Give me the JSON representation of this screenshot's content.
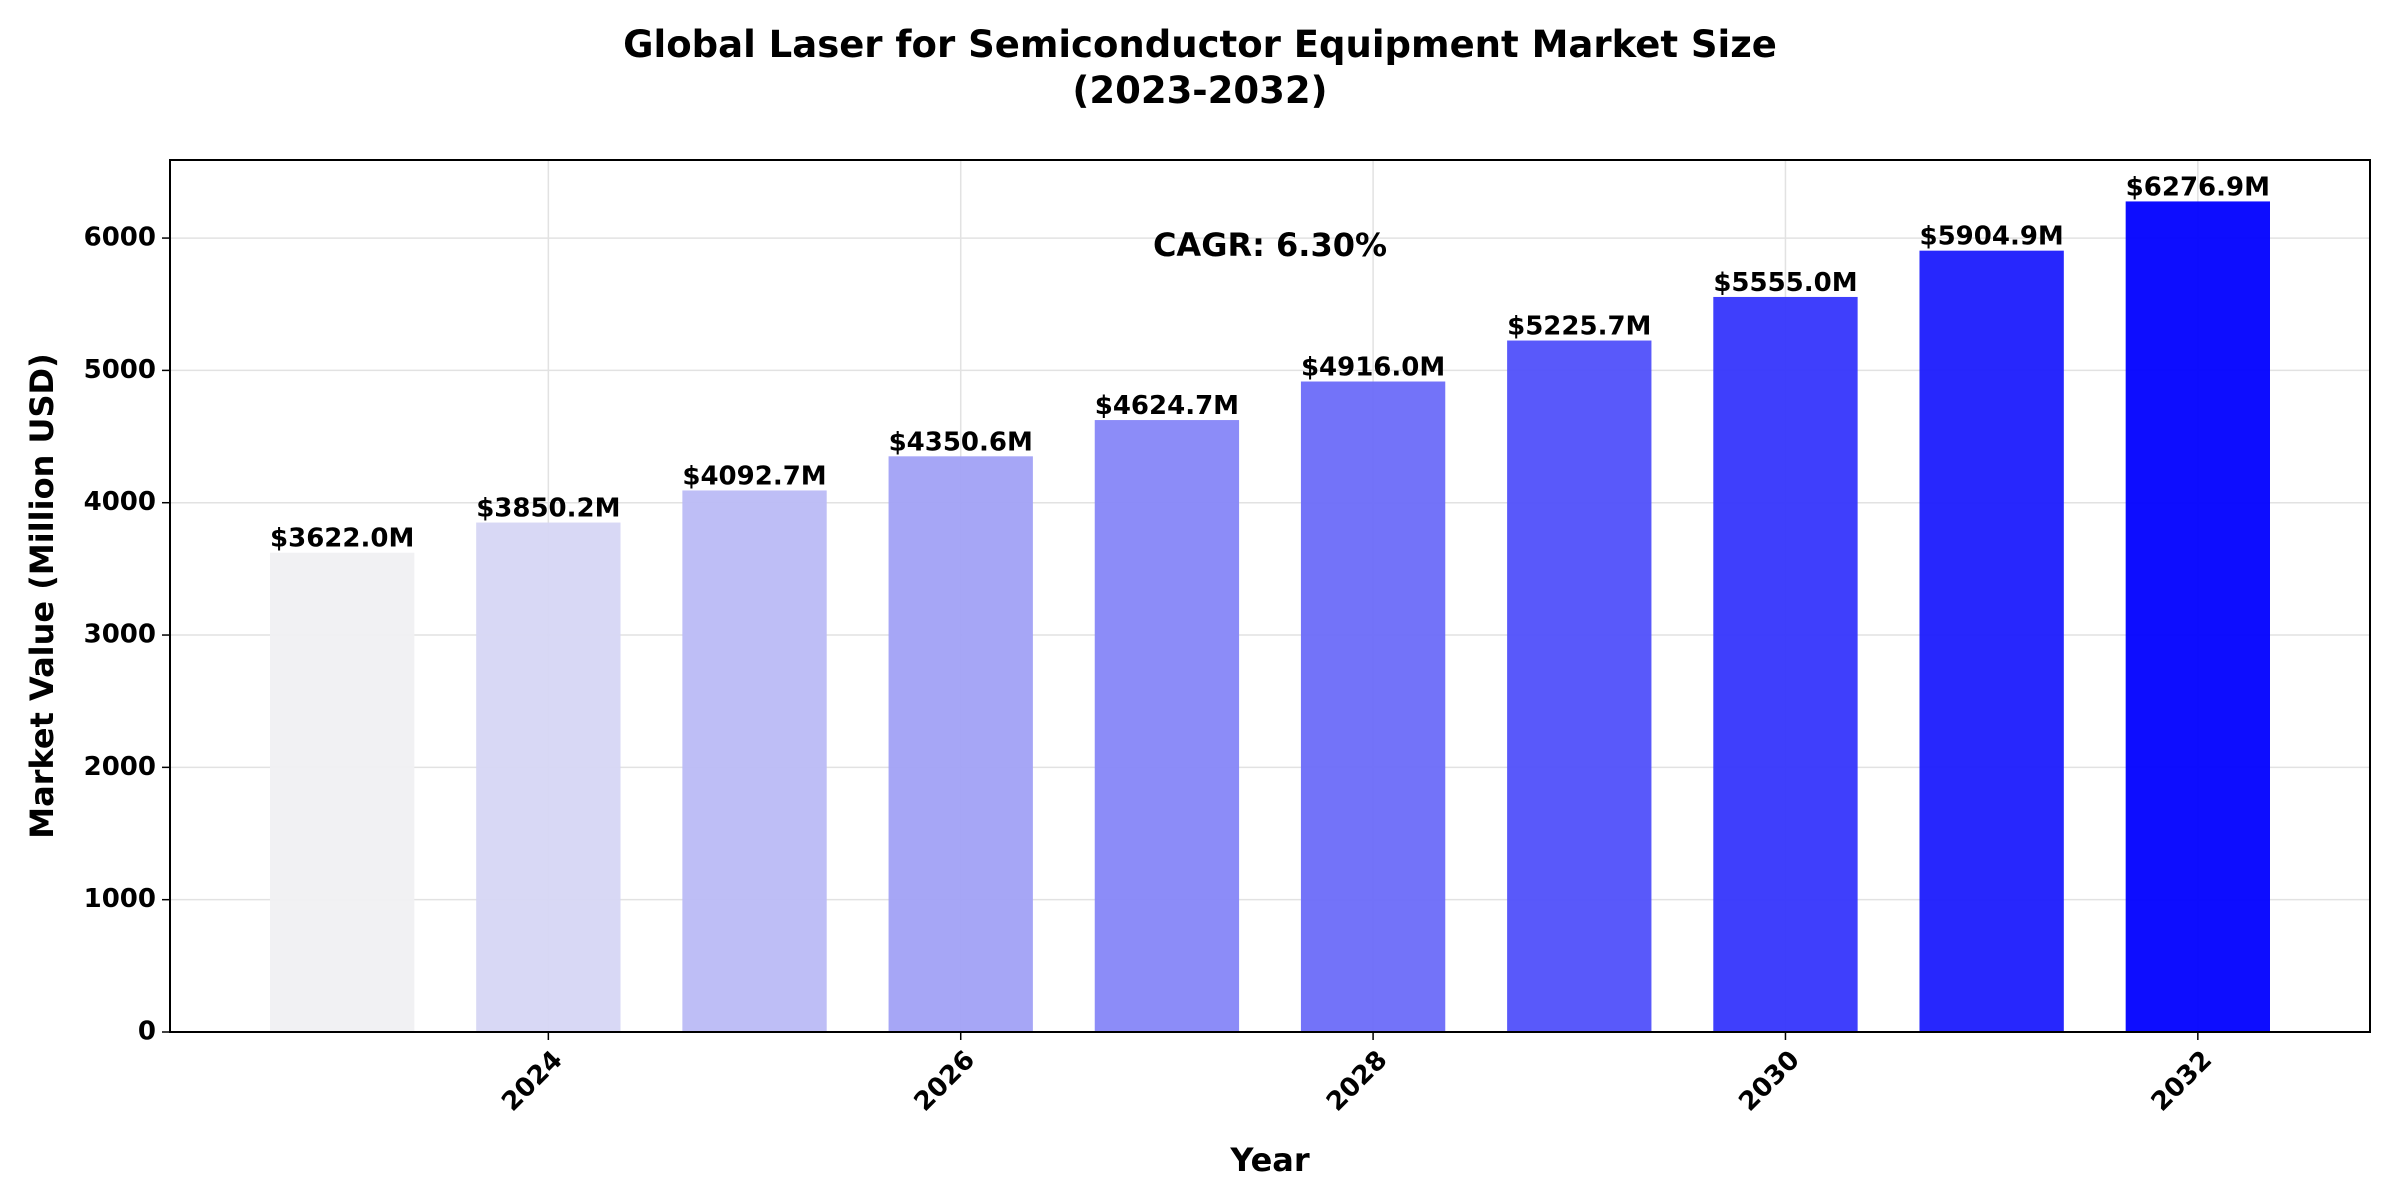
{
  "chart_data": {
    "type": "bar",
    "title": "Global Laser for Semiconductor Equipment Market Size\n(2023-2032)",
    "x_label": "Year",
    "y_label": "Market Value (Million USD)",
    "annotation": "CAGR: 6.30%",
    "x": [
      2023,
      2024,
      2025,
      2026,
      2027,
      2028,
      2029,
      2030,
      2031,
      2032
    ],
    "values": [
      3622.0,
      3850.2,
      4092.7,
      4350.6,
      4624.7,
      4916.0,
      5225.7,
      5555.0,
      5904.9,
      6276.9
    ],
    "value_labels": [
      "$3622.0M",
      "$3850.2M",
      "$4092.7M",
      "$4350.6M",
      "$4624.7M",
      "$4916.0M",
      "$5225.7M",
      "$5555.0M",
      "$5904.9M",
      "$6276.9M"
    ],
    "colors": [
      "#f0f0f2",
      "#d6d6f4",
      "#bbbbf5",
      "#a1a1f6",
      "#8686f8",
      "#6b6bf9",
      "#5050fa",
      "#3535fc",
      "#1b1bfd",
      "#0000ff"
    ],
    "xlim": [
      2022.165,
      2032.835
    ],
    "xticks": [
      2024,
      2026,
      2028,
      2030,
      2032
    ],
    "ylim": [
      0,
      6590
    ],
    "yticks": [
      0,
      1000,
      2000,
      3000,
      4000,
      5000,
      6000
    ],
    "grid": true
  }
}
